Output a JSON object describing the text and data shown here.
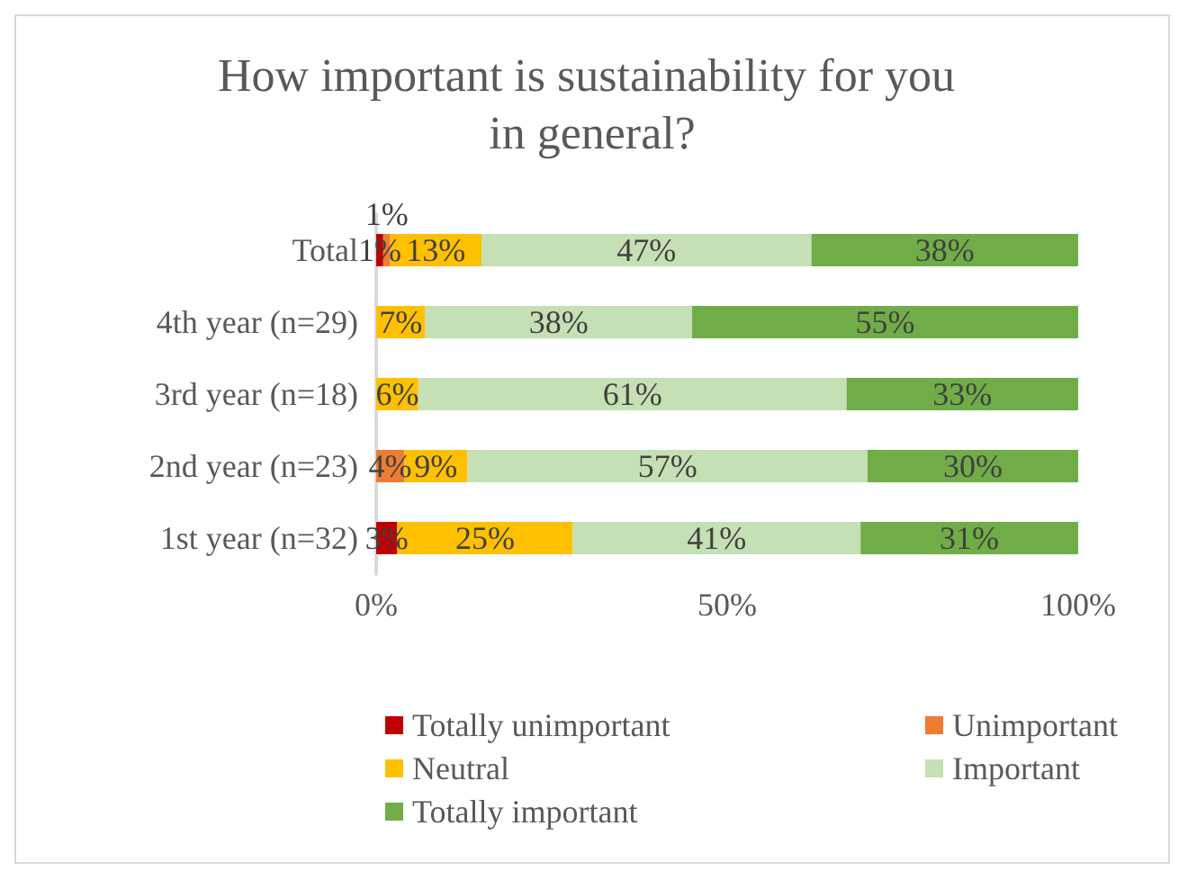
{
  "chart_data": {
    "type": "bar",
    "orientation": "horizontal",
    "stacked": true,
    "title": "How important is sustainability for you in general?",
    "categories": [
      "Total",
      "4th year (n=29)",
      "3rd year (n=18)",
      "2nd year (n=23)",
      "1st year (n=32)"
    ],
    "series": [
      {
        "name": "Totally unimportant",
        "color": "#c00000",
        "values": [
          1,
          0,
          0,
          0,
          3
        ],
        "value_labels": [
          "1%",
          null,
          null,
          null,
          "3%"
        ]
      },
      {
        "name": "Unimportant",
        "color": "#ed7d31",
        "values": [
          1,
          0,
          0,
          4,
          0
        ],
        "value_labels": [
          "1%",
          null,
          null,
          "4%",
          null
        ]
      },
      {
        "name": "Neutral",
        "color": "#ffc000",
        "values": [
          13,
          7,
          6,
          9,
          25
        ],
        "value_labels": [
          "13%",
          "7%",
          "6%",
          "9%",
          "25%"
        ]
      },
      {
        "name": "Important",
        "color": "#c5e0b4",
        "values": [
          47,
          38,
          61,
          57,
          41
        ],
        "value_labels": [
          "47%",
          "38%",
          "61%",
          "57%",
          "41%"
        ]
      },
      {
        "name": "Totally important",
        "color": "#70ad47",
        "values": [
          38,
          55,
          33,
          30,
          31
        ],
        "value_labels": [
          "38%",
          "55%",
          "33%",
          "30%",
          "31%"
        ]
      }
    ],
    "xlim": [
      0,
      100
    ],
    "xticks": [
      {
        "value": 0,
        "label": "0%"
      },
      {
        "value": 50,
        "label": "50%"
      },
      {
        "value": 100,
        "label": "100%"
      }
    ],
    "grid": false,
    "legend": "bottom"
  }
}
